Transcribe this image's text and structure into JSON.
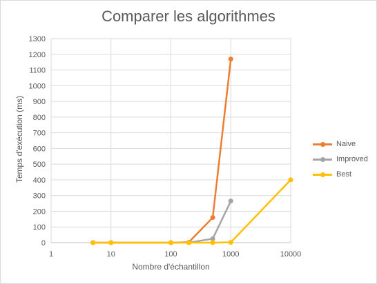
{
  "chart_data": {
    "type": "line",
    "title": "Comparer les algorithmes",
    "xlabel": "Nombre d'échantillon",
    "ylabel": "Temps d'exécution (ms)",
    "x_scale": "log",
    "xlim": [
      1,
      10000
    ],
    "ylim": [
      0,
      1300
    ],
    "x_ticks": [
      "1",
      "10",
      "100",
      "1000",
      "10000"
    ],
    "y_ticks": [
      "0",
      "100",
      "200",
      "300",
      "400",
      "500",
      "600",
      "700",
      "800",
      "900",
      "1000",
      "1100",
      "1200",
      "1300"
    ],
    "grid": true,
    "legend": "right",
    "series": [
      {
        "name": "Naive",
        "color": "#ED7D31",
        "points": [
          [
            5,
            0
          ],
          [
            10,
            0
          ],
          [
            100,
            0
          ],
          [
            200,
            3
          ],
          [
            500,
            160
          ],
          [
            1000,
            1170
          ]
        ]
      },
      {
        "name": "Improved",
        "color": "#A5A5A5",
        "points": [
          [
            5,
            0
          ],
          [
            10,
            0
          ],
          [
            100,
            0
          ],
          [
            200,
            1
          ],
          [
            500,
            25
          ],
          [
            1000,
            265
          ]
        ]
      },
      {
        "name": "Best",
        "color": "#FFC000",
        "points": [
          [
            5,
            0
          ],
          [
            10,
            0
          ],
          [
            100,
            0
          ],
          [
            200,
            0
          ],
          [
            500,
            0
          ],
          [
            1000,
            2
          ],
          [
            10000,
            400
          ]
        ]
      }
    ]
  }
}
